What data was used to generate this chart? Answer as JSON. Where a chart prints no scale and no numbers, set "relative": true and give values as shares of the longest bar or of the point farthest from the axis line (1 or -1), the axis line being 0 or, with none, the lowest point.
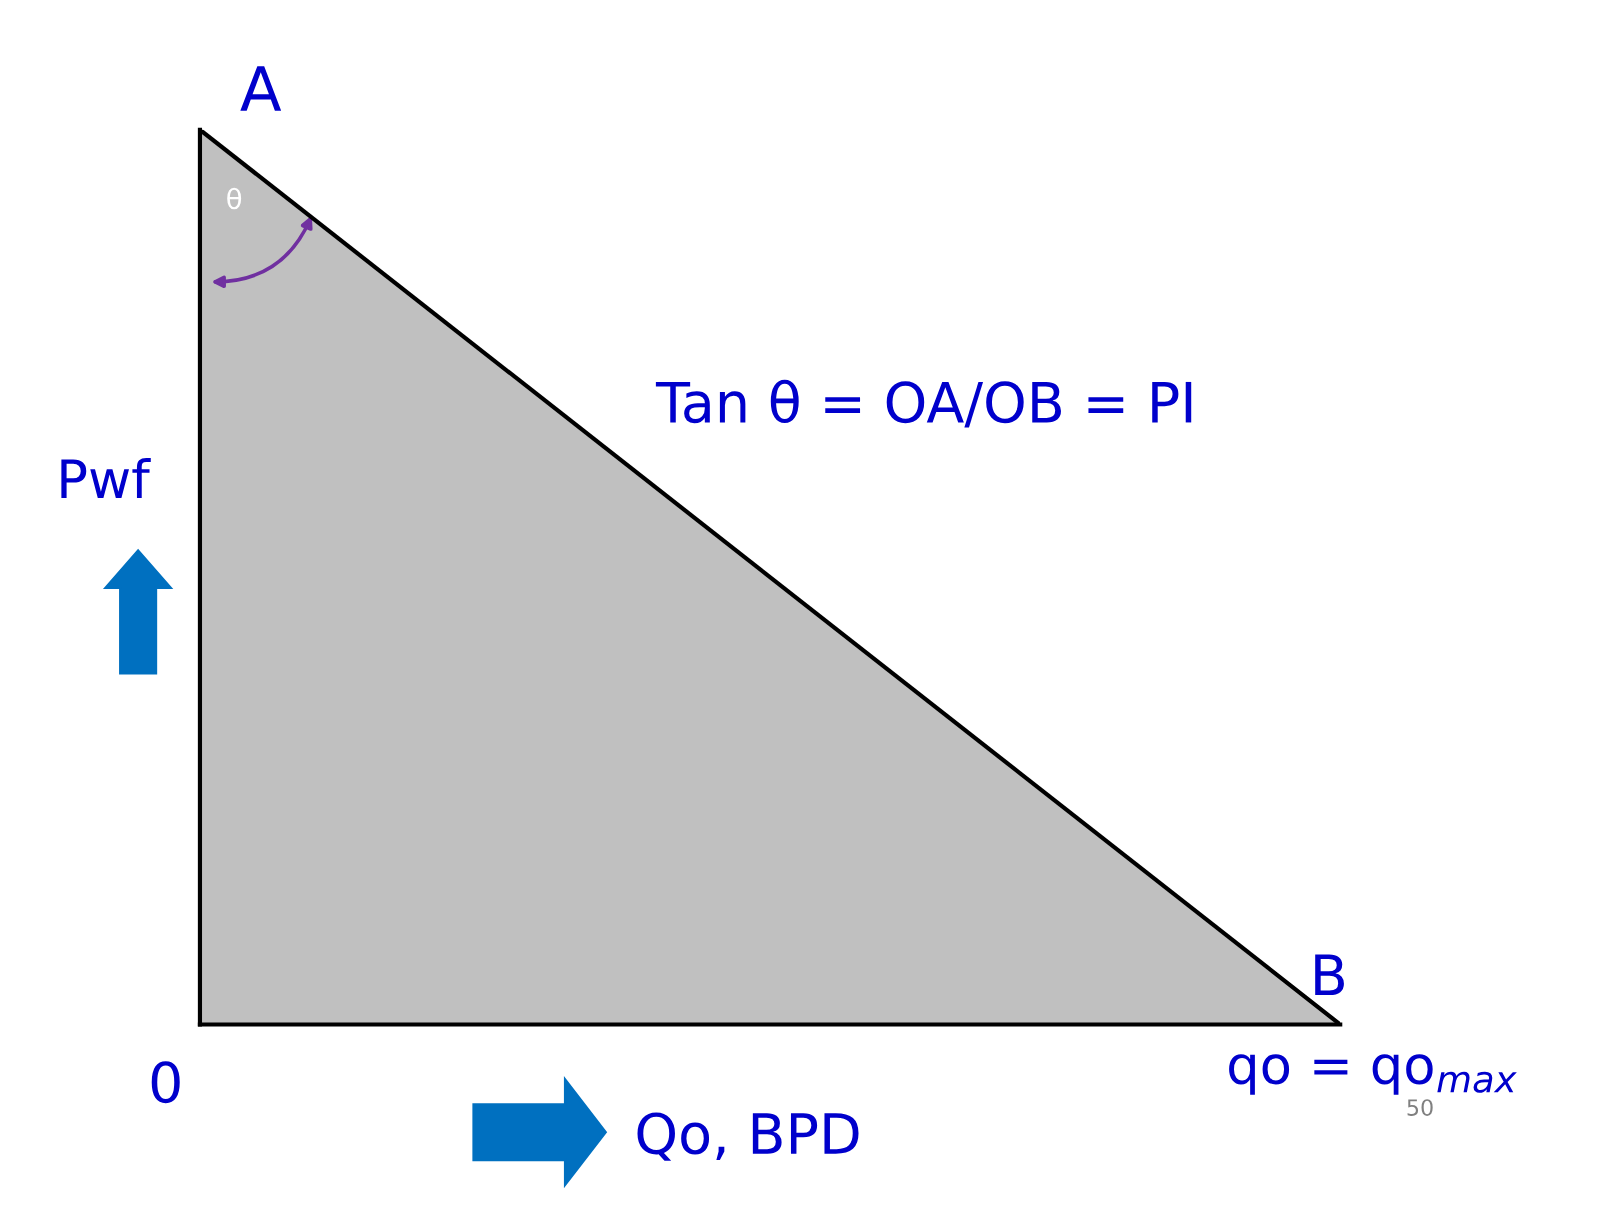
{
  "chart_data": {
    "type": "area",
    "relative": true,
    "categories": [
      null,
      null
    ],
    "series": [
      {
        "color": "#c0c0c0",
        "values": [
          1,
          0
        ]
      }
    ],
    "xlabel": "Qo, BPD",
    "ylabel": "Pwf",
    "annotations": [
      "A",
      "B",
      "0",
      "θ",
      "Tan θ = OA/OB = PI",
      "qo = qo$_{max}$",
      "50"
    ],
    "grid": false
  }
}
